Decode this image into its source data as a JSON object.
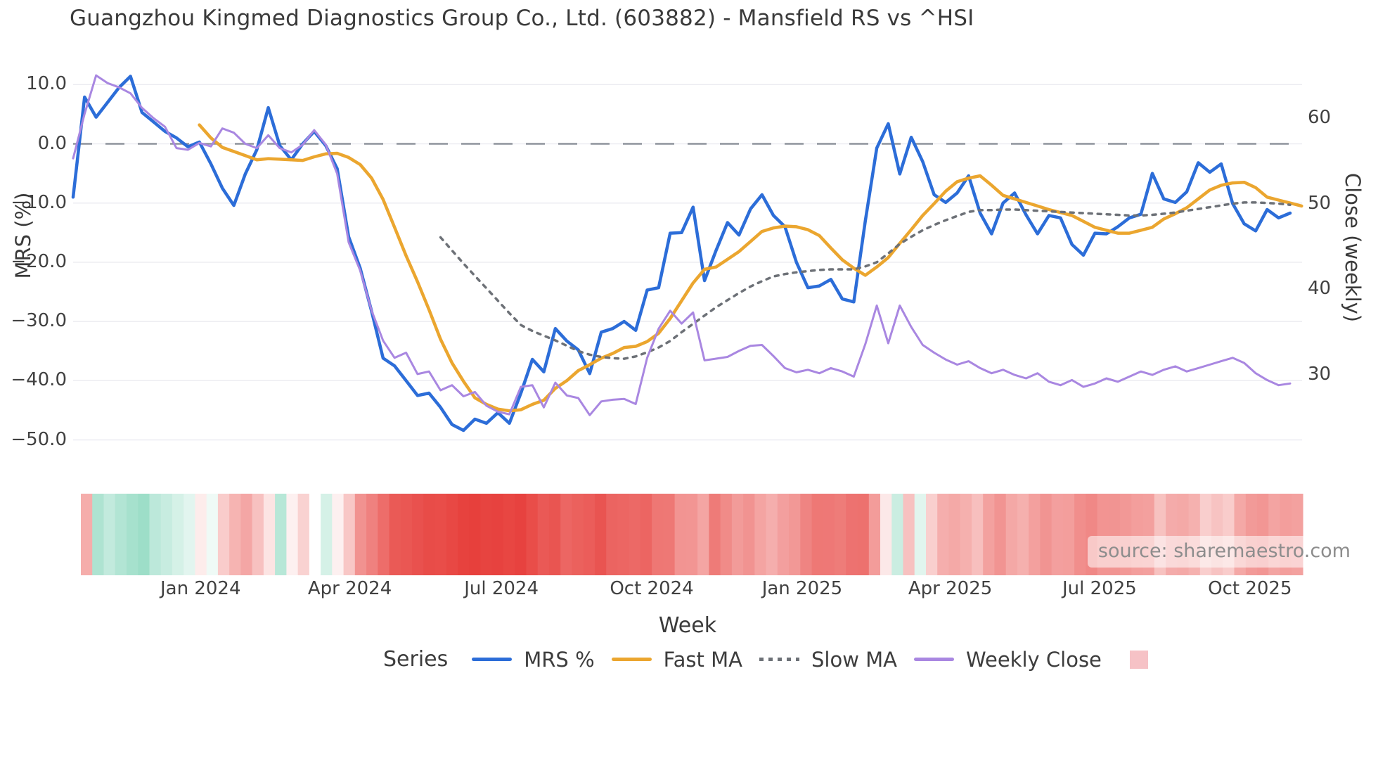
{
  "title": "Guangzhou Kingmed Diagnostics Group Co., Ltd. (603882) - Mansfield RS vs ^HSI",
  "source_label": "source: sharemaestro.com",
  "axes": {
    "x": {
      "title": "Week",
      "tick_labels": [
        "Jan 2024",
        "Apr 2024",
        "Jul 2024",
        "Oct 2024",
        "Jan 2025",
        "Apr 2025",
        "Jul 2025",
        "Oct 2025"
      ],
      "tick_weeks": [
        11.1,
        24.1,
        37.3,
        50.4,
        63.5,
        76.4,
        89.4,
        102.5
      ]
    },
    "y_left": {
      "title": "MRS (%)",
      "tick_values": [
        10,
        0,
        -10,
        -20,
        -30,
        -40,
        -50
      ],
      "tick_labels": [
        "10.0",
        "0.0",
        "−10.0",
        "−20.0",
        "−30.0",
        "−40.0",
        "−50.0"
      ],
      "range": [
        -53,
        14
      ]
    },
    "y_right": {
      "title": "Close (weekly)",
      "tick_values": [
        60,
        50,
        40,
        30
      ],
      "tick_labels": [
        "60",
        "50",
        "40",
        "30"
      ]
    }
  },
  "legend": {
    "series_label": "Series",
    "items": [
      {
        "label": "MRS %",
        "style": "line",
        "color": "#2c6dd8"
      },
      {
        "label": "Fast MA",
        "style": "line",
        "color": "#eba62f"
      },
      {
        "label": "Slow MA",
        "style": "dotted",
        "color": "#6d7177"
      },
      {
        "label": "Weekly Close",
        "style": "line",
        "color": "#a987e1"
      },
      {
        "label": "",
        "style": "square",
        "color": "#f6c2c6"
      }
    ]
  },
  "colors": {
    "mrs": "#2c6dd8",
    "fast_ma": "#eba62f",
    "slow_ma": "#6d7177",
    "weekly_close": "#a987e1",
    "zero_line": "#8e949c",
    "grid": "#ececf1",
    "heat_green": "#2eb88a",
    "heat_red": "#e63935",
    "heat_legend_swatch": "#f6c2c6",
    "title_text": "#3a3a3a",
    "source_text": "#8d8d8d"
  },
  "chart_data": {
    "type": "line",
    "title": "Guangzhou Kingmed Diagnostics Group Co., Ltd. (603882) - Mansfield RS vs ^HSI",
    "xlabel": "Week",
    "ylabel_left": "MRS (%)",
    "ylabel_right": "Close (weekly)",
    "x_unit": "weekly index, ~Nov 2023 to ~Nov 2025, 107 points",
    "ylim_left": [
      -53,
      14
    ],
    "grid": true,
    "zero_reference_line": 0,
    "legend_position": "bottom",
    "series": [
      {
        "name": "MRS %",
        "axis": "left",
        "start_week": 0,
        "values": [
          -9.0,
          7.9,
          4.5,
          7.0,
          9.5,
          11.4,
          5.3,
          3.7,
          2.1,
          1.0,
          -0.5,
          0.3,
          -3.4,
          -7.5,
          -10.4,
          -5.1,
          -1.0,
          6.1,
          -0.3,
          -2.7,
          0.0,
          2.1,
          -0.3,
          -4.2,
          -15.7,
          -21.0,
          -28.3,
          -36.2,
          -37.5,
          -40.0,
          -42.5,
          -42.1,
          -44.5,
          -47.4,
          -48.4,
          -46.5,
          -47.2,
          -45.4,
          -47.2,
          -42.1,
          -36.4,
          -38.5,
          -31.2,
          -33.3,
          -34.8,
          -38.8,
          -31.8,
          -31.2,
          -30.0,
          -31.5,
          -24.7,
          -24.3,
          -15.1,
          -15.0,
          -10.7,
          -23.1,
          -18.0,
          -13.3,
          -15.4,
          -11.0,
          -8.6,
          -12.1,
          -14.0,
          -20.0,
          -24.3,
          -24.0,
          -22.9,
          -26.2,
          -26.7,
          -13.0,
          -0.7,
          3.4,
          -5.1,
          1.1,
          -3.0,
          -8.6,
          -9.9,
          -8.3,
          -5.4,
          -11.7,
          -15.2,
          -10.0,
          -8.3,
          -12.0,
          -15.2,
          -12.1,
          -12.5,
          -17.0,
          -18.8,
          -15.1,
          -15.2,
          -14.0,
          -12.5,
          -11.9,
          -5.0,
          -9.3,
          -9.9,
          -8.1,
          -3.2,
          -4.8,
          -3.4,
          -10.1,
          -13.5,
          -14.7,
          -11.1,
          -12.5,
          -11.7
        ]
      },
      {
        "name": "Fast MA",
        "axis": "left",
        "start_week": 11,
        "values": [
          3.2,
          1.0,
          -0.6,
          -1.3,
          -2.0,
          -2.7,
          -2.5,
          -2.6,
          -2.7,
          -2.8,
          -2.2,
          -1.7,
          -1.6,
          -2.3,
          -3.5,
          -5.8,
          -9.4,
          -14.1,
          -18.9,
          -23.3,
          -28.0,
          -33.0,
          -37.0,
          -40.1,
          -42.9,
          -44.0,
          -44.8,
          -45.1,
          -44.9,
          -44.0,
          -43.3,
          -41.3,
          -40.0,
          -38.3,
          -37.3,
          -36.2,
          -35.4,
          -34.4,
          -34.2,
          -33.4,
          -32.0,
          -29.5,
          -26.5,
          -23.5,
          -21.2,
          -20.8,
          -19.5,
          -18.2,
          -16.5,
          -14.8,
          -14.2,
          -13.9,
          -14.0,
          -14.5,
          -15.5,
          -17.6,
          -19.6,
          -21.0,
          -22.2,
          -20.8,
          -19.2,
          -16.8,
          -14.5,
          -12.1,
          -10.1,
          -8.0,
          -6.4,
          -5.8,
          -5.4,
          -7.0,
          -8.7,
          -9.3,
          -9.9,
          -10.5,
          -11.1,
          -11.6,
          -12.1,
          -13.1,
          -14.1,
          -14.6,
          -15.1,
          -15.1,
          -14.6,
          -14.1,
          -12.7,
          -11.8,
          -10.8,
          -9.3,
          -7.8,
          -7.0,
          -6.6,
          -6.5,
          -7.4,
          -9.0,
          -9.5,
          -10.0,
          -10.5
        ]
      },
      {
        "name": "Slow MA",
        "axis": "left",
        "start_week": 32,
        "values": [
          -15.8,
          -18.0,
          -20.2,
          -22.3,
          -24.4,
          -26.5,
          -28.6,
          -30.6,
          -31.6,
          -32.4,
          -33.2,
          -34.1,
          -35.0,
          -35.6,
          -36.0,
          -36.2,
          -36.3,
          -35.9,
          -35.2,
          -34.4,
          -33.3,
          -31.8,
          -30.4,
          -29.0,
          -27.6,
          -26.4,
          -25.2,
          -24.1,
          -23.2,
          -22.4,
          -22.0,
          -21.7,
          -21.5,
          -21.3,
          -21.2,
          -21.2,
          -21.2,
          -20.7,
          -20.0,
          -18.5,
          -16.9,
          -15.7,
          -14.6,
          -13.7,
          -12.9,
          -12.2,
          -11.5,
          -11.2,
          -11.2,
          -11.1,
          -11.1,
          -11.2,
          -11.3,
          -11.4,
          -11.5,
          -11.6,
          -11.7,
          -11.8,
          -11.9,
          -12.0,
          -12.1,
          -12.1,
          -12.0,
          -11.8,
          -11.6,
          -11.3,
          -11.0,
          -10.7,
          -10.4,
          -10.1,
          -9.9,
          -9.9,
          -10.0,
          -10.1,
          -10.3
        ]
      },
      {
        "name": "Weekly Close",
        "axis": "right",
        "start_week": 0,
        "values": [
          55.3,
          60.5,
          65.0,
          64.1,
          63.6,
          62.9,
          61.2,
          60.0,
          59.0,
          56.5,
          56.3,
          57.1,
          56.7,
          58.8,
          58.3,
          57.0,
          56.5,
          58.0,
          56.5,
          56.0,
          56.9,
          58.6,
          56.9,
          53.5,
          45.5,
          42.2,
          37.5,
          34.0,
          32.0,
          32.6,
          30.1,
          30.4,
          28.2,
          28.8,
          27.5,
          28.0,
          26.4,
          25.7,
          25.4,
          28.6,
          28.8,
          26.2,
          29.1,
          27.6,
          27.3,
          25.3,
          26.9,
          27.1,
          27.2,
          26.6,
          32.0,
          35.4,
          37.5,
          36.0,
          37.3,
          31.7,
          31.9,
          32.1,
          32.8,
          33.4,
          33.5,
          32.2,
          30.8,
          30.3,
          30.6,
          30.2,
          30.8,
          30.4,
          29.8,
          33.6,
          38.1,
          33.7,
          38.1,
          35.6,
          33.5,
          32.6,
          31.8,
          31.2,
          31.6,
          30.8,
          30.2,
          30.6,
          30.0,
          29.6,
          30.2,
          29.2,
          28.8,
          29.4,
          28.6,
          29.0,
          29.6,
          29.2,
          29.8,
          30.4,
          30.0,
          30.6,
          31.0,
          30.4,
          30.8,
          31.2,
          31.6,
          32.0,
          31.4,
          30.2,
          29.4,
          28.8,
          29.0
        ]
      }
    ],
    "heatmap_strip": {
      "description": "weekly band below plot; green for positive MRS, red for negative, intensity scales with |MRS|",
      "derived_from": "MRS %",
      "green": "#2eb88a",
      "red": "#e63935"
    }
  }
}
